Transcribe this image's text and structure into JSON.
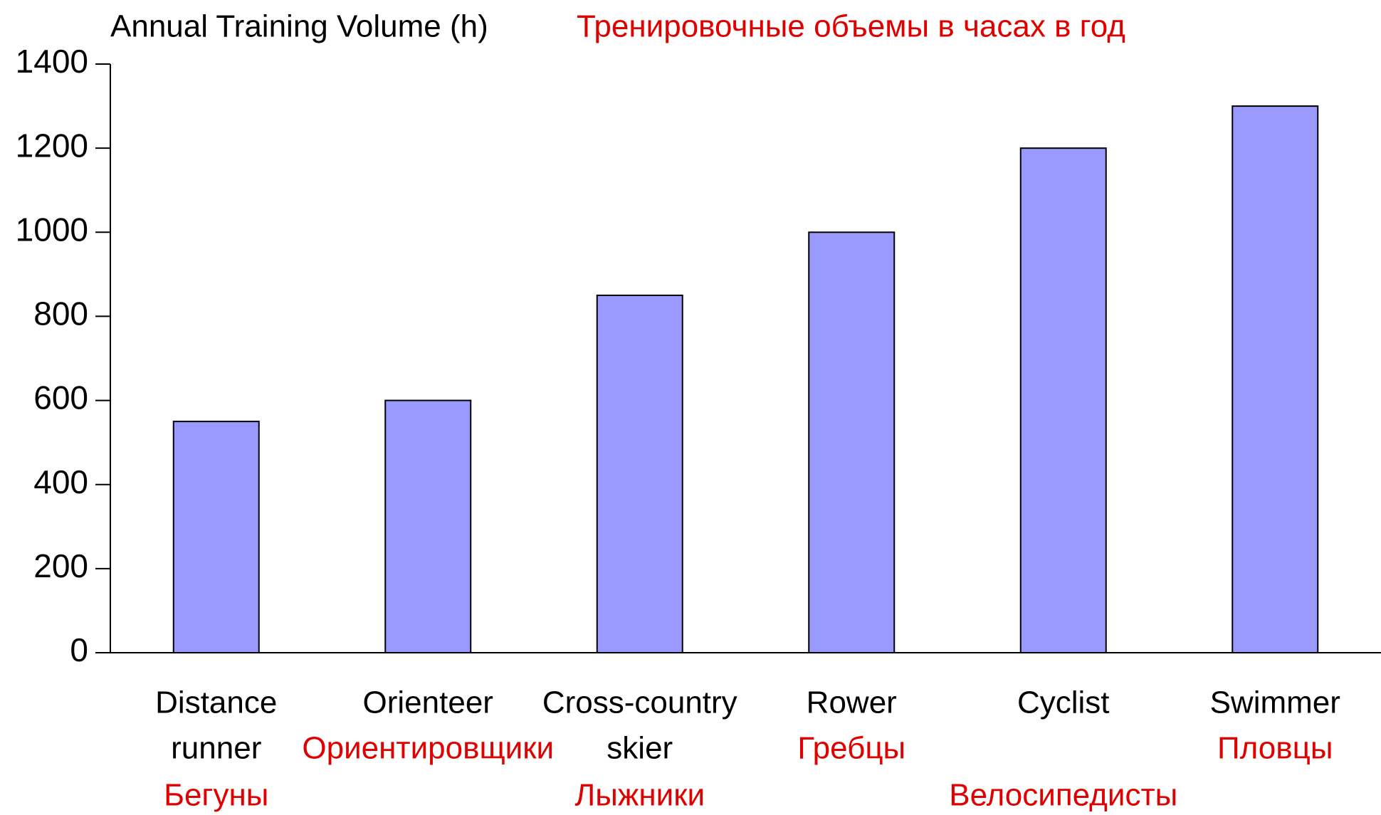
{
  "chart_data": {
    "type": "bar",
    "title": "Annual Training Volume (h)",
    "subtitle": "Тренировочные объемы в часах в год",
    "categories": [
      [
        "Distance",
        "runner"
      ],
      [
        "Orienteer"
      ],
      [
        "Cross-country",
        "skier"
      ],
      [
        "Rower"
      ],
      [
        "Cyclist"
      ],
      [
        "Swimmer"
      ]
    ],
    "categories_ru": [
      "Бегуны",
      "Ориентировщики",
      "Лыжники",
      "Гребцы",
      "Велосипедисты",
      "Пловцы"
    ],
    "values": [
      550,
      600,
      850,
      1000,
      1200,
      1300
    ],
    "color": "#9999ff",
    "ylim": [
      0,
      1400
    ],
    "yticks": [
      0,
      200,
      400,
      600,
      800,
      1000,
      1200,
      1400
    ],
    "grid": false
  }
}
